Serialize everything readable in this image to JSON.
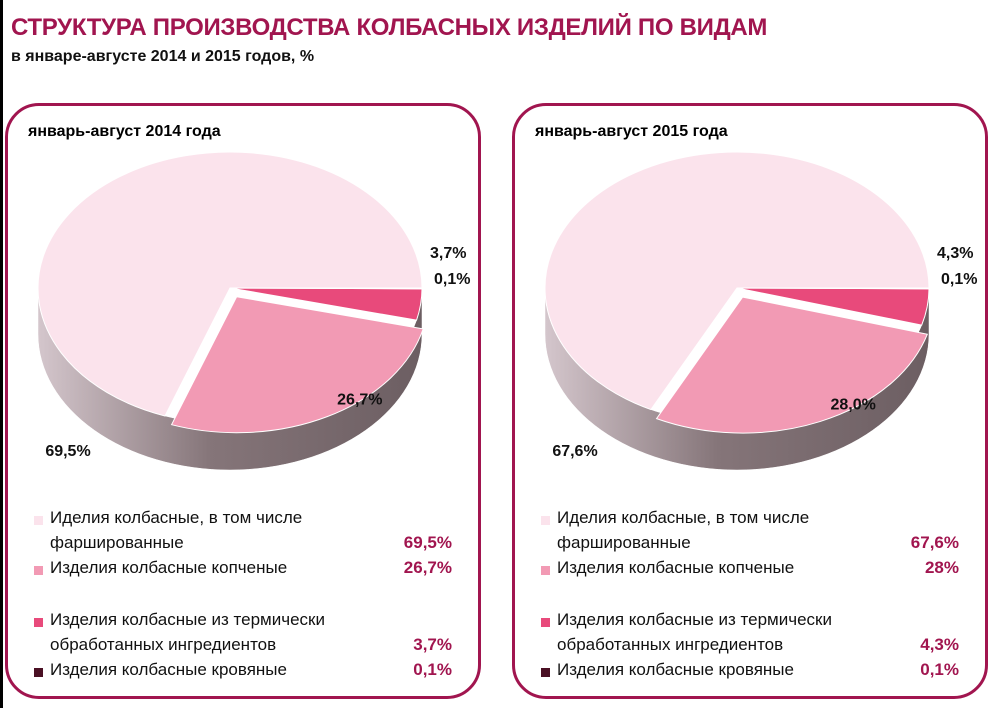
{
  "page": {
    "title": "СТРУКТУРА ПРОИЗВОДСТВА КОЛБАСНЫХ ИЗДЕЛИЙ ПО ВИДАМ",
    "subtitle": "в январе-августе  2014 и 2015 годов,  %"
  },
  "colors": {
    "accent": "#a1154f",
    "slices": [
      "#fbe3ec",
      "#f29ab4",
      "#e84a7b",
      "#4a1024"
    ],
    "side": "#6c5e62"
  },
  "legend_items": [
    {
      "line1": "Иделия колбасные, в том числе",
      "line2": "фаршированные"
    },
    {
      "line1": "Изделия колбасные копченые",
      "line2": ""
    },
    {
      "line1": "Изделия колбасные из термически",
      "line2": "обработанных ингредиентов"
    },
    {
      "line1": "Изделия колбасные кровяные",
      "line2": ""
    }
  ],
  "chart_data": [
    {
      "type": "pie",
      "title": "январь-август  2014 года",
      "categories": [
        "Иделия колбасные, в том числе фаршированные",
        "Изделия колбасные копченые",
        "Изделия колбасные из термически обработанных ингредиентов",
        "Изделия колбасные кровяные"
      ],
      "values": [
        69.5,
        26.7,
        3.7,
        0.1
      ],
      "data_labels": [
        "69,5%",
        "26,7%",
        "3,7%",
        "0,1%"
      ],
      "legend_values": [
        "69,5%",
        "26,7%",
        "3,7%",
        "0,1%"
      ]
    },
    {
      "type": "pie",
      "title": "январь-август  2015 года",
      "categories": [
        "Иделия колбасные, в том числе фаршированные",
        "Изделия колбасные копченые",
        "Изделия колбасные из термически обработанных ингредиентов",
        "Изделия колбасные кровяные"
      ],
      "values": [
        67.6,
        28.0,
        4.3,
        0.1
      ],
      "data_labels": [
        "67,6%",
        "28,0%",
        "4,3%",
        "0,1%"
      ],
      "legend_values": [
        "67,6%",
        "28%",
        "4,3%",
        "0,1%"
      ]
    }
  ]
}
